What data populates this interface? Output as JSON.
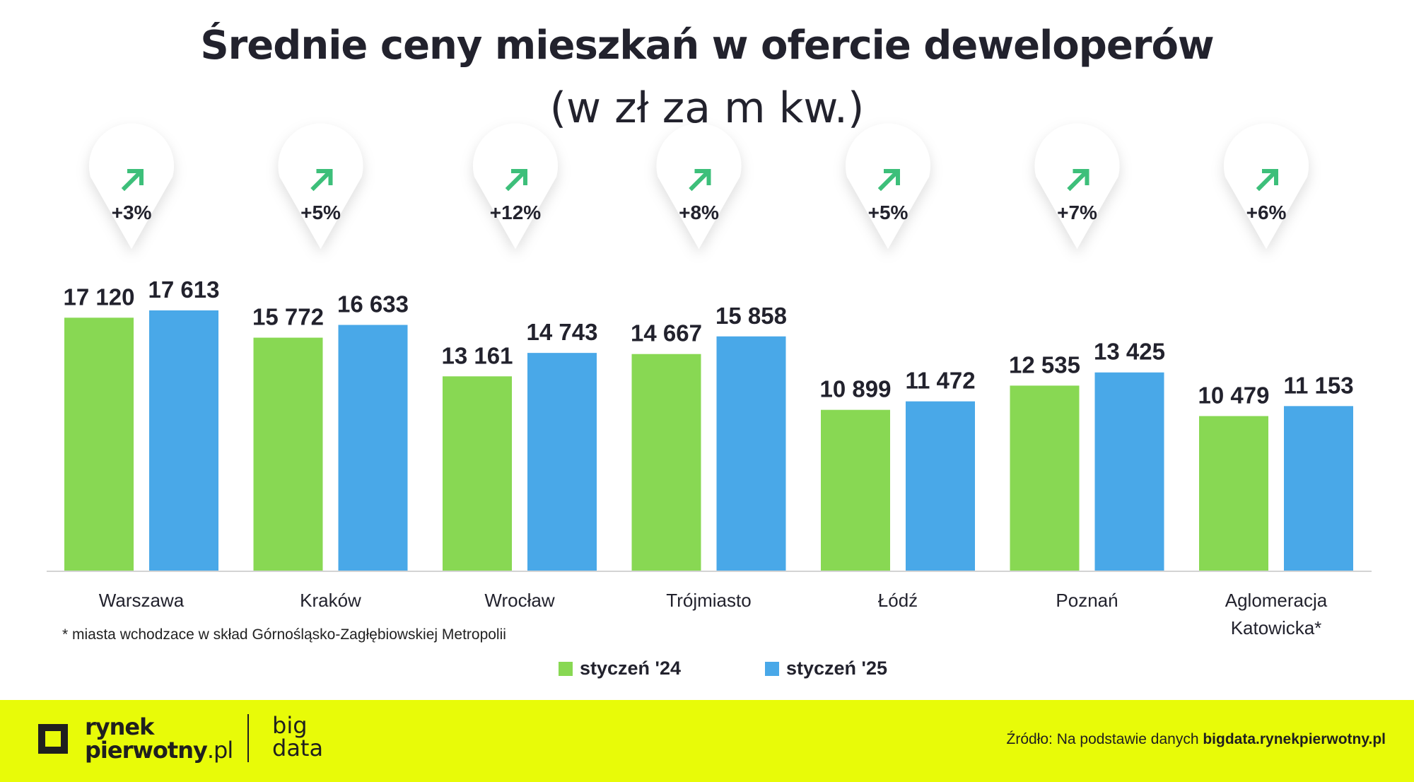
{
  "title": "Średnie ceny mieszkań w ofercie deweloperów",
  "subtitle": "(w zł za m kw.)",
  "chart_data": {
    "type": "bar",
    "categories": [
      [
        "Warszawa"
      ],
      [
        "Kraków"
      ],
      [
        "Wrocław"
      ],
      [
        "Trójmiasto"
      ],
      [
        "Łódź"
      ],
      [
        "Poznań"
      ],
      [
        "Aglomeracja",
        "Katowicka*"
      ]
    ],
    "series": [
      {
        "name": "styczeń '24",
        "color": "#88d853",
        "values": [
          17120,
          15772,
          13161,
          14667,
          10899,
          12535,
          10479
        ],
        "labels": [
          "17 120",
          "15 772",
          "13 161",
          "14 667",
          "10 899",
          "12 535",
          "10 479"
        ]
      },
      {
        "name": "styczeń  '25",
        "color": "#49a8e8",
        "values": [
          17613,
          16633,
          14743,
          15858,
          11472,
          13425,
          11153
        ],
        "labels": [
          "17 613",
          "16 633",
          "14 743",
          "15 858",
          "11 472",
          "13 425",
          "11 153"
        ]
      }
    ],
    "changes": [
      "+3%",
      "+5%",
      "+12%",
      "+8%",
      "+5%",
      "+7%",
      "+6%"
    ],
    "arrow_color": "#3dbf7a",
    "ylim": [
      0,
      17613
    ]
  },
  "note": "* miasta wchodzace w skład Górnośląsko-Zagłębiowskiej Metropolii",
  "legend": [
    {
      "label": "styczeń '24",
      "color": "#88d853"
    },
    {
      "label": "styczeń  '25",
      "color": "#49a8e8"
    }
  ],
  "footer": {
    "logo_line1": "rynek",
    "logo_line2": "pierwotny",
    "logo_suffix": ".pl",
    "bigdata_line1": "big",
    "bigdata_line2": "data",
    "source_prefix": "Źródło: Na podstawie danych ",
    "source_bold": "bigdata.rynekpierwotny.pl",
    "background": "#e8fb08"
  }
}
